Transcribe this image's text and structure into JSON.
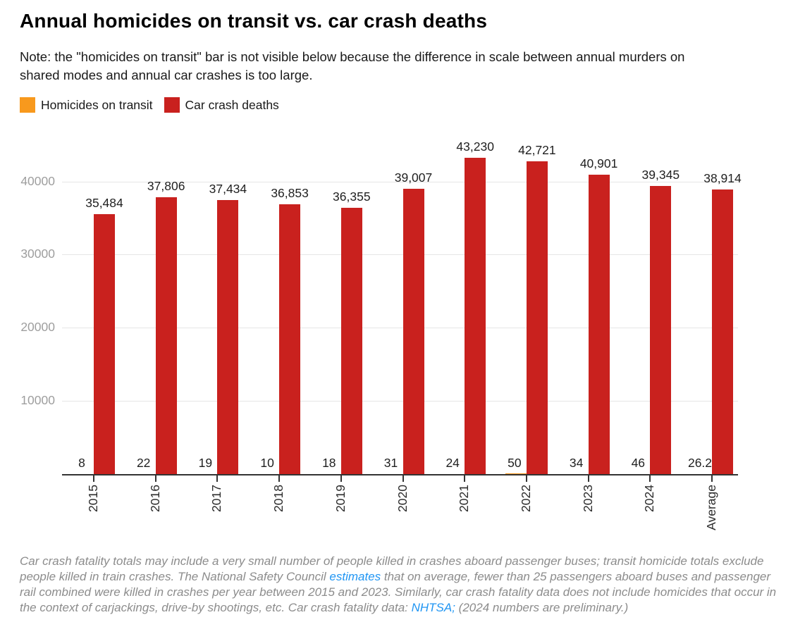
{
  "title": "Annual homicides on transit vs. car crash deaths",
  "note": "Note: the \"homicides on transit\" bar is not visible below because the difference in scale between annual murders on shared modes and annual car crashes is too large.",
  "legend": [
    {
      "label": "Homicides on transit",
      "color": "#F8991D"
    },
    {
      "label": "Car crash deaths",
      "color": "#C9211E"
    }
  ],
  "chart_data": {
    "type": "bar",
    "categories": [
      "2015",
      "2016",
      "2017",
      "2018",
      "2019",
      "2020",
      "2021",
      "2022",
      "2023",
      "2024",
      "Average"
    ],
    "series": [
      {
        "name": "Homicides on transit",
        "color": "#F8991D",
        "values": [
          8,
          22,
          19,
          10,
          18,
          31,
          24,
          50,
          34,
          46,
          26.2
        ],
        "labels": [
          "8",
          "22",
          "19",
          "10",
          "18",
          "31",
          "24",
          "50",
          "34",
          "46",
          "26.2"
        ]
      },
      {
        "name": "Car crash deaths",
        "color": "#C9211E",
        "values": [
          35484,
          37806,
          37434,
          36853,
          36355,
          39007,
          43230,
          42721,
          40901,
          39345,
          38914
        ],
        "labels": [
          "35,484",
          "37,806",
          "37,434",
          "36,853",
          "36,355",
          "39,007",
          "43,230",
          "42,721",
          "40,901",
          "39,345",
          "38,914"
        ]
      }
    ],
    "yticks": [
      10000,
      20000,
      30000,
      40000
    ],
    "ytick_labels": [
      "10000",
      "20000",
      "30000",
      "40000"
    ],
    "ylim": [
      0,
      45000
    ],
    "grid": true,
    "legend_position": "top",
    "bar_label_position": "above",
    "colors": {
      "grid": "#E6E6E6",
      "axis": "#333333",
      "ytick_text": "#9E9E9E"
    }
  },
  "footer": {
    "segments": [
      {
        "text": "Car crash fatality totals may include a very small number of people killed in crashes aboard passenger buses; transit homicide totals exclude people killed in train crashes. The National Safety Council ",
        "link": false
      },
      {
        "text": "estimates",
        "link": true
      },
      {
        "text": " that on average, fewer than 25 passengers aboard buses and passenger rail combined were killed in crashes per year between 2015 and 2023. Similarly, car crash fatality data does not include homicides that occur in the context of carjackings, drive-by shootings, etc. Car crash fatality data: ",
        "link": false
      },
      {
        "text": "NHTSA;",
        "link": true
      },
      {
        "text": " (2024 numbers are preliminary.)",
        "link": false
      }
    ],
    "link_color": "#2196F3"
  }
}
